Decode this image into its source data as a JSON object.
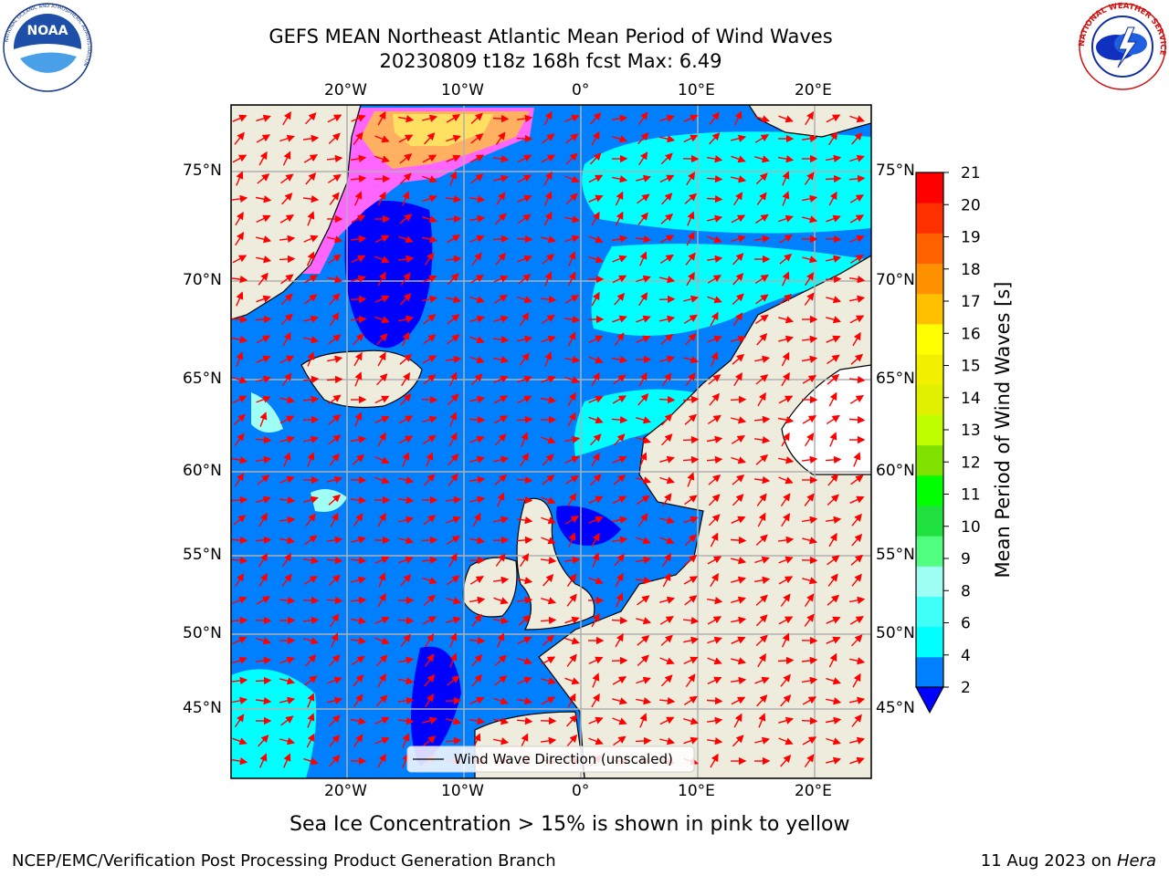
{
  "title": {
    "line1": "GEFS MEAN Northeast Atlantic Mean Period of Wind Waves",
    "line2": "20230809 t18z 168h fcst   Max: 6.49"
  },
  "logos": {
    "left_text_outer": "NATIONAL OCEANIC AND ATMOSPHERIC ADMINISTRATION",
    "left_text_center": "NOAA",
    "left_text_bottom": "U.S. DEPARTMENT OF COMMERCE",
    "right_text": "NATIONAL WEATHER SERVICE"
  },
  "map": {
    "lon_labels": [
      "20°W",
      "10°W",
      "0°",
      "10°E",
      "20°E"
    ],
    "lat_labels": [
      "75°N",
      "70°N",
      "65°N",
      "60°N",
      "55°N",
      "50°N",
      "45°N"
    ],
    "legend_label": "Wind Wave Direction (unscaled)",
    "colors": {
      "ocean_blue": "#0080ff",
      "deep_blue": "#0000ff",
      "cyan": "#00ffff",
      "light_cyan": "#9ffff4",
      "land": "#eeecdc",
      "arrow": "#ff0000",
      "ice_pink": "#ff66ff",
      "ice_orange": "#ffb060",
      "ice_yellow": "#ffe060",
      "grid": "#b0b0b0"
    }
  },
  "colorbar": {
    "label": "Mean Period of Wind Waves [s]",
    "ticks": [
      "2",
      "4",
      "6",
      "8",
      "9",
      "10",
      "11",
      "12",
      "13",
      "14",
      "15",
      "16",
      "17",
      "18",
      "19",
      "20",
      "21"
    ],
    "colors": [
      "#0080ff",
      "#00ffff",
      "#40fff8",
      "#9ffff4",
      "#50ff80",
      "#20e040",
      "#00ff00",
      "#80e000",
      "#c0ff00",
      "#e0f000",
      "#f0f000",
      "#ffff00",
      "#ffc000",
      "#ff9000",
      "#ff6000",
      "#ff3000",
      "#ff0000"
    ],
    "under_color": "#0000ff"
  },
  "footer": {
    "note": "Sea Ice Concentration > 15% is shown in pink to yellow",
    "branch": "NCEP/EMC/Verification Post Processing Product Generation Branch",
    "date": "11 Aug 2023 on",
    "host": "Hera"
  }
}
